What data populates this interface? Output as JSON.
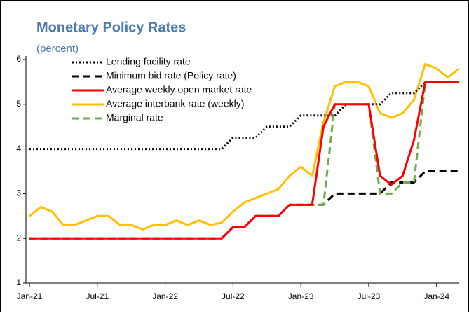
{
  "chart_data": {
    "type": "line",
    "title": "Monetary Policy Rates",
    "subtitle": "(percent)",
    "x": [
      "2021-01",
      "2021-02",
      "2021-03",
      "2021-04",
      "2021-05",
      "2021-06",
      "2021-07",
      "2021-08",
      "2021-09",
      "2021-10",
      "2021-11",
      "2021-12",
      "2022-01",
      "2022-02",
      "2022-03",
      "2022-04",
      "2022-05",
      "2022-06",
      "2022-07",
      "2022-08",
      "2022-09",
      "2022-10",
      "2022-11",
      "2022-12",
      "2023-01",
      "2023-02",
      "2023-03",
      "2023-04",
      "2023-05",
      "2023-06",
      "2023-07",
      "2023-08",
      "2023-09",
      "2023-10",
      "2023-11",
      "2023-12",
      "2024-01",
      "2024-02",
      "2024-03"
    ],
    "series": [
      {
        "name": "Lending facility rate",
        "color": "#000000",
        "dash": "dotted",
        "values": [
          4,
          4,
          4,
          4,
          4,
          4,
          4,
          4,
          4,
          4,
          4,
          4,
          4,
          4,
          4,
          4,
          4,
          4,
          4.25,
          4.25,
          4.25,
          4.5,
          4.5,
          4.5,
          4.75,
          4.75,
          4.75,
          4.75,
          5,
          5,
          5,
          5,
          5.25,
          5.25,
          5.25,
          5.5,
          5.5,
          5.5,
          5.5
        ]
      },
      {
        "name": "Minimum bid rate (Policy rate)",
        "color": "#000000",
        "dash": "dashed",
        "values": [
          2,
          2,
          2,
          2,
          2,
          2,
          2,
          2,
          2,
          2,
          2,
          2,
          2,
          2,
          2,
          2,
          2,
          2,
          2.25,
          2.25,
          2.5,
          2.5,
          2.5,
          2.75,
          2.75,
          2.75,
          2.75,
          3,
          3,
          3,
          3,
          3,
          3.25,
          3.25,
          3.25,
          3.5,
          3.5,
          3.5,
          3.5
        ]
      },
      {
        "name": "Average weekly open market rate",
        "color": "#ff0000",
        "dash": "solid",
        "values": [
          2,
          2,
          2,
          2,
          2,
          2,
          2,
          2,
          2,
          2,
          2,
          2,
          2,
          2,
          2,
          2,
          2,
          2,
          2.25,
          2.25,
          2.5,
          2.5,
          2.5,
          2.75,
          2.75,
          2.75,
          4.5,
          5,
          5,
          5,
          5,
          3.4,
          3.2,
          3.4,
          4.2,
          5.5,
          5.5,
          5.5,
          5.5
        ]
      },
      {
        "name": "Average interbank rate (weekly)",
        "color": "#ffc000",
        "dash": "solid",
        "values": [
          2.5,
          2.7,
          2.6,
          2.3,
          2.3,
          2.4,
          2.5,
          2.5,
          2.3,
          2.3,
          2.2,
          2.3,
          2.3,
          2.4,
          2.3,
          2.4,
          2.3,
          2.35,
          2.6,
          2.8,
          2.9,
          3,
          3.1,
          3.4,
          3.6,
          3.4,
          4.6,
          5.4,
          5.5,
          5.5,
          5.4,
          4.8,
          4.7,
          4.8,
          5.1,
          5.9,
          5.8,
          5.6,
          5.8
        ]
      },
      {
        "name": "Marginal rate",
        "color": "#70ad47",
        "dash": "dashed",
        "values": [
          2,
          2,
          2,
          2,
          2,
          2,
          2,
          2,
          2,
          2,
          2,
          2,
          2,
          2,
          2,
          2,
          2,
          2,
          2.25,
          2.25,
          2.5,
          2.5,
          2.5,
          2.75,
          2.75,
          2.75,
          2.75,
          5,
          5,
          5,
          5,
          3,
          3,
          3.25,
          3.25,
          5.5,
          5.5,
          5.5,
          5.5
        ]
      }
    ],
    "xlim": [
      "2021-01",
      "2024-03"
    ],
    "xticks": [
      {
        "value": "2021-01",
        "label": "Jan-21"
      },
      {
        "value": "2021-07",
        "label": "Jul-21"
      },
      {
        "value": "2022-01",
        "label": "Jan-22"
      },
      {
        "value": "2022-07",
        "label": "Jul-22"
      },
      {
        "value": "2023-01",
        "label": "Jan-23"
      },
      {
        "value": "2023-07",
        "label": "Jul-23"
      },
      {
        "value": "2024-01",
        "label": "Jan-24"
      }
    ],
    "ylim": [
      1,
      6
    ],
    "yticks": [
      1,
      2,
      3,
      4,
      5,
      6
    ],
    "legend": "top-left"
  }
}
